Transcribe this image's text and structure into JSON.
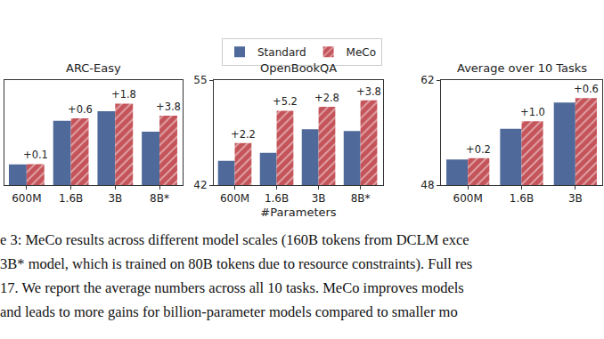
{
  "chart_data": [
    {
      "type": "bar",
      "title": "ARC-Easy",
      "categories": [
        "600M",
        "1.6B",
        "3B",
        "8B*"
      ],
      "series": [
        {
          "name": "Standard",
          "color": "#4f6a9a",
          "values": [
            59.9,
            70.3,
            72.6,
            67.7
          ]
        },
        {
          "name": "MeCo",
          "color": "#c4545a",
          "marker": "hatch",
          "values": [
            60.0,
            70.9,
            74.4,
            71.5
          ]
        }
      ],
      "ylim": [
        55,
        80
      ],
      "yticks": [],
      "tick_labels": "x",
      "grid": false,
      "legend": "top",
      "annotations": [
        {
          "category": "600M",
          "series": "MeCo",
          "text": "+0.1"
        },
        {
          "category": "1.6B",
          "series": "MeCo",
          "text": "+0.6"
        },
        {
          "category": "3B",
          "series": "MeCo",
          "text": "+1.8"
        },
        {
          "category": "8B*",
          "series": "MeCo",
          "text": "+3.8"
        }
      ]
    },
    {
      "type": "bar",
      "title": "OpenBookQA",
      "xlabel": "#Parameters",
      "categories": [
        "600M",
        "1.6B",
        "3B",
        "8B*"
      ],
      "series": [
        {
          "name": "Standard",
          "color": "#4f6a9a",
          "values": [
            45.0,
            46.0,
            48.9,
            48.7
          ]
        },
        {
          "name": "MeCo",
          "color": "#c4545a",
          "marker": "hatch",
          "values": [
            47.2,
            51.2,
            51.7,
            52.5
          ]
        }
      ],
      "ylim": [
        42,
        55
      ],
      "yticks": [
        42,
        55
      ],
      "grid": false,
      "annotations": [
        {
          "category": "600M",
          "series": "MeCo",
          "text": "+2.2"
        },
        {
          "category": "1.6B",
          "series": "MeCo",
          "text": "+5.2"
        },
        {
          "category": "3B",
          "series": "MeCo",
          "text": "+2.8"
        },
        {
          "category": "8B*",
          "series": "MeCo",
          "text": "+3.8"
        }
      ]
    },
    {
      "type": "bar",
      "title": "Average over 10 Tasks",
      "categories": [
        "600M",
        "1.6B",
        "3B"
      ],
      "series": [
        {
          "name": "Standard",
          "color": "#4f6a9a",
          "values": [
            51.4,
            55.5,
            59.0
          ]
        },
        {
          "name": "MeCo",
          "color": "#c4545a",
          "marker": "hatch",
          "values": [
            51.6,
            56.5,
            59.6
          ]
        }
      ],
      "ylim": [
        48,
        62
      ],
      "yticks": [
        48,
        62
      ],
      "grid": false,
      "annotations": [
        {
          "category": "600M",
          "series": "MeCo",
          "text": "+0.2"
        },
        {
          "category": "1.6B",
          "series": "MeCo",
          "text": "+1.0"
        },
        {
          "category": "3B",
          "series": "MeCo",
          "text": "+0.6"
        }
      ]
    }
  ],
  "caption": [
    "e 3: MeCo results across different model scales (160B tokens from DCLM exce",
    "3B* model, which is trained on 80B tokens due to resource constraints). Full res",
    "17. We report the average numbers across all 10 tasks. MeCo improves models",
    "and leads to more gains for billion-parameter models compared to smaller mo"
  ]
}
